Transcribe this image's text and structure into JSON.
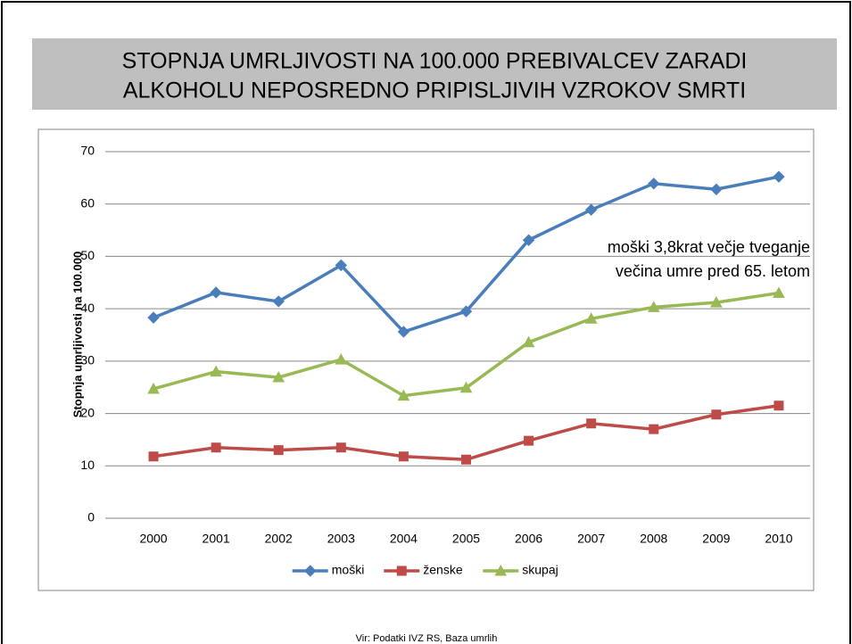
{
  "chart_data": {
    "type": "line",
    "title": [
      "STOPNJA UMRLJIVOSTI NA 100.000 PREBIVALCEV ZARADI",
      "ALKOHOLU NEPOSREDNO PRIPISLJIVIH VZROKOV SMRTI"
    ],
    "y_label": "Stopnja umrljivosti na 100.000",
    "categories": [
      "2000",
      "2001",
      "2002",
      "2003",
      "2004",
      "2005",
      "2006",
      "2007",
      "2008",
      "2009",
      "2010"
    ],
    "series": [
      {
        "name": "moški",
        "color": "#4a7ebb",
        "marker": "diamond",
        "values": [
          38.3,
          43.1,
          41.4,
          48.3,
          35.6,
          39.5,
          53.1,
          58.9,
          63.9,
          62.8,
          65.2
        ]
      },
      {
        "name": "ženske",
        "color": "#be4b48",
        "marker": "square",
        "values": [
          11.8,
          13.5,
          13.0,
          13.5,
          11.8,
          11.2,
          14.8,
          18.1,
          17.0,
          19.8,
          21.5
        ]
      },
      {
        "name": "skupaj",
        "color": "#98b954",
        "marker": "triangle",
        "values": [
          24.7,
          28.0,
          26.9,
          30.3,
          23.4,
          24.9,
          33.6,
          38.1,
          40.3,
          41.2,
          43.0
        ]
      }
    ],
    "ylim": [
      0,
      70
    ],
    "yticks": [
      0,
      10,
      20,
      30,
      40,
      50,
      60,
      70
    ],
    "grid": true,
    "legend": "bottom",
    "annotation": [
      "moški 3,8krat večje tveganje",
      "večina umre pred 65. letom"
    ],
    "source": "Vir: Podatki IVZ RS, Baza umrlih"
  }
}
